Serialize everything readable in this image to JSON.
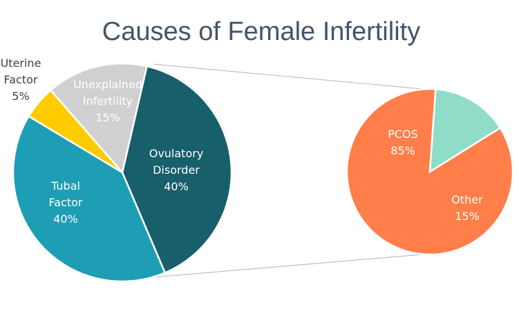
{
  "chart_data": [
    {
      "type": "pie",
      "title": "Causes of Female Infertility",
      "slices": [
        {
          "label": [
            "Ovulatory",
            "Disorder"
          ],
          "value": 40,
          "value_label": "40%",
          "color": "#175F6A",
          "text_color": "#ffffff"
        },
        {
          "label": [
            "Tubal",
            "Factor"
          ],
          "value": 40,
          "value_label": "40%",
          "color": "#1E9EB4",
          "text_color": "#ffffff"
        },
        {
          "label": [
            "Uterine",
            "Factor"
          ],
          "value": 5,
          "value_label": "5%",
          "color": "#FFCC00",
          "text_color": "#404040"
        },
        {
          "label": [
            "Unexplained",
            "Infertility"
          ],
          "value": 15,
          "value_label": "15%",
          "color": "#D0D0D0",
          "text_color": "#ffffff"
        }
      ]
    },
    {
      "type": "pie",
      "title": "",
      "breakdown_of": "Ovulatory Disorder",
      "slices": [
        {
          "label": [
            "PCOS"
          ],
          "value": 85,
          "value_label": "85%",
          "color": "#FF7E4A",
          "text_color": "#ffffff"
        },
        {
          "label": [
            "Other"
          ],
          "value": 15,
          "value_label": "15%",
          "color": "#8FDDC9",
          "text_color": "#ffffff"
        }
      ]
    }
  ]
}
